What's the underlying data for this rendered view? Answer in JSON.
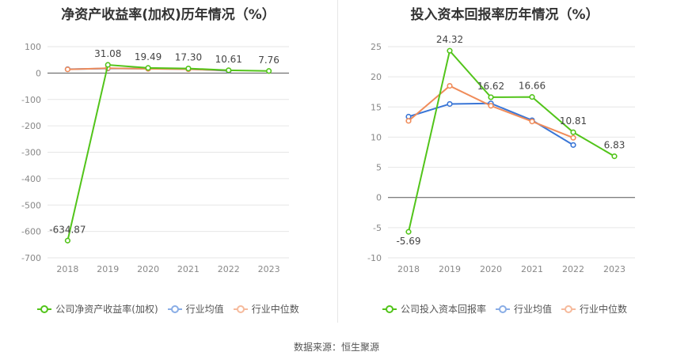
{
  "source_text": "数据来源：恒生聚源",
  "chart_data": [
    {
      "type": "line",
      "title": "净资产收益率(加权)历年情况（%）",
      "categories": [
        "2018",
        "2019",
        "2020",
        "2021",
        "2022",
        "2023"
      ],
      "yticks": [
        100,
        0,
        -100,
        -200,
        -300,
        -400,
        -500,
        -600,
        -700
      ],
      "ylim": [
        -700,
        100
      ],
      "grid": true,
      "legend_position": "bottom",
      "series": [
        {
          "name": "公司净资产收益率(加权)",
          "color": "#52c41a",
          "values": [
            -634.87,
            31.08,
            19.49,
            17.3,
            10.61,
            7.76
          ],
          "labels": [
            "-634.87",
            "31.08",
            "19.49",
            "17.30",
            "10.61",
            "7.76"
          ]
        },
        {
          "name": "行业均值",
          "color": "#3a76d6",
          "values": [
            14.5,
            17.5,
            16.5,
            15.0,
            8.5,
            null
          ]
        },
        {
          "name": "行业中位数",
          "color": "#f08c5a",
          "values": [
            14.0,
            18.5,
            16.0,
            14.5,
            10.0,
            null
          ]
        }
      ]
    },
    {
      "type": "line",
      "title": "投入资本回报率历年情况（%）",
      "categories": [
        "2018",
        "2019",
        "2020",
        "2021",
        "2022",
        "2023"
      ],
      "yticks": [
        25,
        20,
        15,
        10,
        5,
        0,
        -5,
        -10
      ],
      "ylim": [
        -10,
        25
      ],
      "grid": true,
      "legend_position": "bottom",
      "series": [
        {
          "name": "公司投入资本回报率",
          "color": "#52c41a",
          "values": [
            -5.69,
            24.32,
            16.62,
            16.66,
            10.81,
            6.83
          ],
          "labels": [
            "-5.69",
            "24.32",
            "16.62",
            "16.66",
            "10.81",
            "6.83"
          ]
        },
        {
          "name": "行业均值",
          "color": "#3a76d6",
          "values": [
            13.4,
            15.5,
            15.6,
            12.8,
            8.7,
            null
          ]
        },
        {
          "name": "行业中位数",
          "color": "#f08c5a",
          "values": [
            12.7,
            18.5,
            15.2,
            12.6,
            9.9,
            null
          ]
        }
      ]
    }
  ]
}
